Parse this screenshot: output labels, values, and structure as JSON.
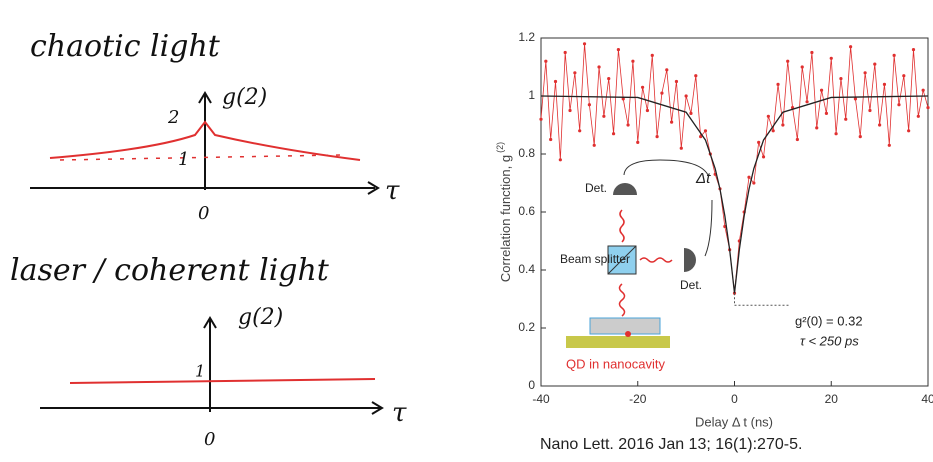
{
  "notes": {
    "chaotic": {
      "title": "chaotic light",
      "axis": "g(2)",
      "tick_high": "2",
      "tick_low": "1",
      "origin": "0",
      "x_axis": "τ"
    },
    "coherent": {
      "title": "laser / coherent light",
      "axis": "g(2)",
      "tick_low": "1",
      "origin": "0",
      "x_axis": "τ"
    }
  },
  "chart_data": {
    "type": "line",
    "x_label": "Delay  Δ t (ns)",
    "y_label": "Correlation function, g",
    "y_label_sup": "(2)",
    "xlim": [
      -40,
      40
    ],
    "xticks": [
      -40,
      -20,
      0,
      20,
      40
    ],
    "ylim": [
      0,
      1.2
    ],
    "yticks": [
      0,
      0.2,
      0.4,
      0.6,
      0.8,
      1,
      1.2
    ],
    "annotations": [
      "g²(0) = 0.32",
      "τ < 250 ps"
    ],
    "inset": {
      "detector_top": "Det.",
      "delay": "Δt",
      "beam_splitter": "Beam splitter",
      "detector_right": "Det.",
      "source": "QD in nanocavity"
    },
    "series": [
      {
        "color": "#e03030",
        "markers": true,
        "x": [
          -40,
          -39,
          -38,
          -37,
          -36,
          -35,
          -34,
          -33,
          -32,
          -31,
          -30,
          -29,
          -28,
          -27,
          -26,
          -25,
          -24,
          -23,
          -22,
          -21,
          -20,
          -19,
          -18,
          -17,
          -16,
          -15,
          -14,
          -13,
          -12,
          -11,
          -10,
          -9,
          -8,
          -7,
          -6,
          -5,
          -4,
          -3,
          -2,
          -1,
          0,
          1,
          2,
          3,
          4,
          5,
          6,
          7,
          8,
          9,
          10,
          11,
          12,
          13,
          14,
          15,
          16,
          17,
          18,
          19,
          20,
          21,
          22,
          23,
          24,
          25,
          26,
          27,
          28,
          29,
          30,
          31,
          32,
          33,
          34,
          35,
          36,
          37,
          38,
          39,
          40
        ],
        "values": [
          0.92,
          1.12,
          0.85,
          1.05,
          0.78,
          1.15,
          0.95,
          1.08,
          0.88,
          1.18,
          0.97,
          0.83,
          1.1,
          0.93,
          1.06,
          0.87,
          1.16,
          0.99,
          0.9,
          1.12,
          0.84,
          1.03,
          0.95,
          1.14,
          0.86,
          1.01,
          1.09,
          0.91,
          1.05,
          0.82,
          1.0,
          0.94,
          1.07,
          0.86,
          0.88,
          0.8,
          0.73,
          0.68,
          0.55,
          0.47,
          0.32,
          0.5,
          0.6,
          0.72,
          0.7,
          0.84,
          0.79,
          0.93,
          0.88,
          1.04,
          0.9,
          1.12,
          0.96,
          0.85,
          1.1,
          0.98,
          1.15,
          0.89,
          1.02,
          0.94,
          1.13,
          0.87,
          1.06,
          0.92,
          1.17,
          0.99,
          0.86,
          1.08,
          0.95,
          1.11,
          0.9,
          1.04,
          0.83,
          1.14,
          0.97,
          1.07,
          0.88,
          1.16,
          0.93,
          1.02,
          0.96
        ]
      },
      {
        "color": "#222222",
        "markers": false,
        "x": [
          -40,
          -20,
          -10,
          -6,
          -4,
          -3,
          -2,
          -1,
          0,
          1,
          2,
          3,
          4,
          6,
          10,
          20,
          40
        ],
        "values": [
          1,
          0.995,
          0.944,
          0.848,
          0.75,
          0.679,
          0.587,
          0.47,
          0.32,
          0.47,
          0.587,
          0.679,
          0.75,
          0.848,
          0.944,
          0.995,
          1
        ]
      }
    ]
  },
  "citation": "Nano Lett. 2016 Jan 13; 16(1):270-5."
}
